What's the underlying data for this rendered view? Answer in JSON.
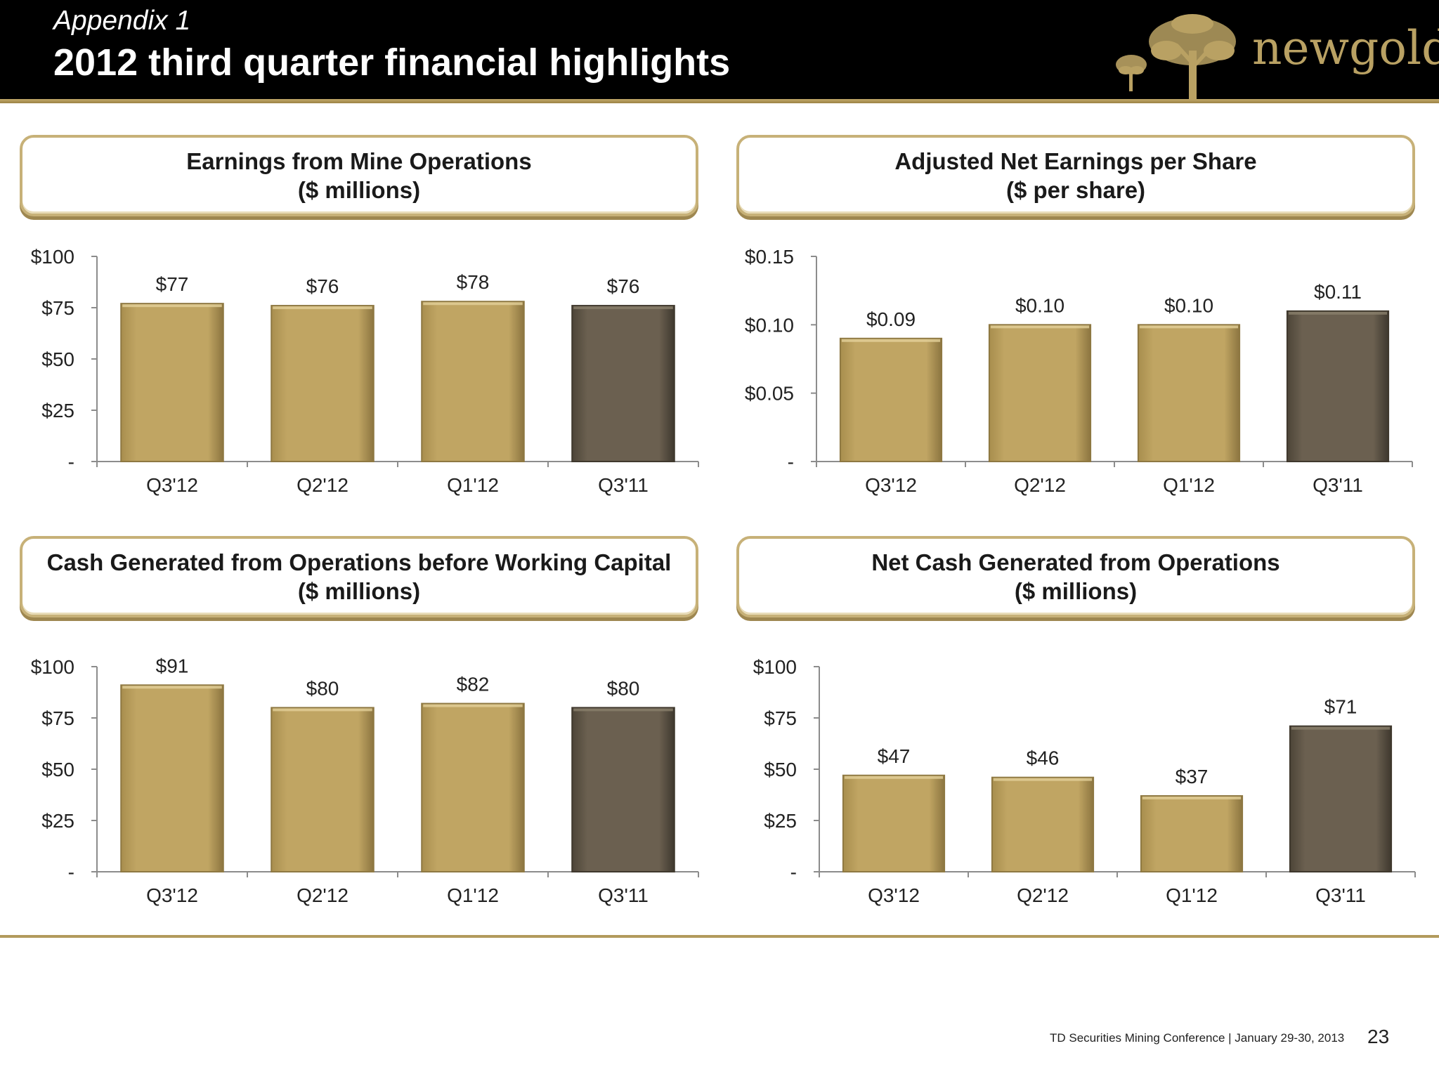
{
  "header": {
    "subtitle": "Appendix 1",
    "title": "2012 third quarter financial highlights",
    "logo_text": "newgold",
    "logo_icon": "tree-logo-icon"
  },
  "footer": {
    "conference": "TD Securities Mining Conference  |  January 29-30, 2013",
    "page": "23"
  },
  "colors": {
    "gold_bar": "#c0a563",
    "gray_bar": "#6b6050",
    "accent": "#b29a5c",
    "header_bg": "#000000"
  },
  "chart_data": [
    {
      "type": "bar",
      "title": "Earnings from Mine Operations",
      "subtitle": "($ millions)",
      "categories": [
        "Q3'12",
        "Q2'12",
        "Q1'12",
        "Q3'11"
      ],
      "values": [
        77,
        76,
        78,
        76
      ],
      "data_labels": [
        "$77",
        "$76",
        "$78",
        "$76"
      ],
      "bar_colors": [
        "gold",
        "gold",
        "gold",
        "gray"
      ],
      "ylim": [
        0,
        100
      ],
      "yticks": [
        0,
        25,
        50,
        75,
        100
      ],
      "ytick_labels": [
        "-",
        "$25",
        "$50",
        "$75",
        "$100"
      ]
    },
    {
      "type": "bar",
      "title": "Adjusted Net Earnings per Share",
      "subtitle": "($ per share)",
      "categories": [
        "Q3'12",
        "Q2'12",
        "Q1'12",
        "Q3'11"
      ],
      "values": [
        0.09,
        0.1,
        0.1,
        0.11
      ],
      "data_labels": [
        "$0.09",
        "$0.10",
        "$0.10",
        "$0.11"
      ],
      "bar_colors": [
        "gold",
        "gold",
        "gold",
        "gray"
      ],
      "ylim": [
        0,
        0.15
      ],
      "yticks": [
        0,
        0.05,
        0.1,
        0.15
      ],
      "ytick_labels": [
        "-",
        "$0.05",
        "$0.10",
        "$0.15"
      ]
    },
    {
      "type": "bar",
      "title": "Cash Generated from Operations before Working Capital",
      "subtitle": "($ millions)",
      "categories": [
        "Q3'12",
        "Q2'12",
        "Q1'12",
        "Q3'11"
      ],
      "values": [
        91,
        80,
        82,
        80
      ],
      "data_labels": [
        "$91",
        "$80",
        "$82",
        "$80"
      ],
      "bar_colors": [
        "gold",
        "gold",
        "gold",
        "gray"
      ],
      "ylim": [
        0,
        100
      ],
      "yticks": [
        0,
        25,
        50,
        75,
        100
      ],
      "ytick_labels": [
        "-",
        "$25",
        "$50",
        "$75",
        "$100"
      ]
    },
    {
      "type": "bar",
      "title": "Net Cash Generated from Operations",
      "subtitle": "($ millions)",
      "categories": [
        "Q3'12",
        "Q2'12",
        "Q1'12",
        "Q3'11"
      ],
      "values": [
        47,
        46,
        37,
        71
      ],
      "data_labels": [
        "$47",
        "$46",
        "$37",
        "$71"
      ],
      "bar_colors": [
        "gold",
        "gold",
        "gold",
        "gray"
      ],
      "ylim": [
        0,
        100
      ],
      "yticks": [
        0,
        25,
        50,
        75,
        100
      ],
      "ytick_labels": [
        "-",
        "$25",
        "$50",
        "$75",
        "$100"
      ]
    }
  ]
}
